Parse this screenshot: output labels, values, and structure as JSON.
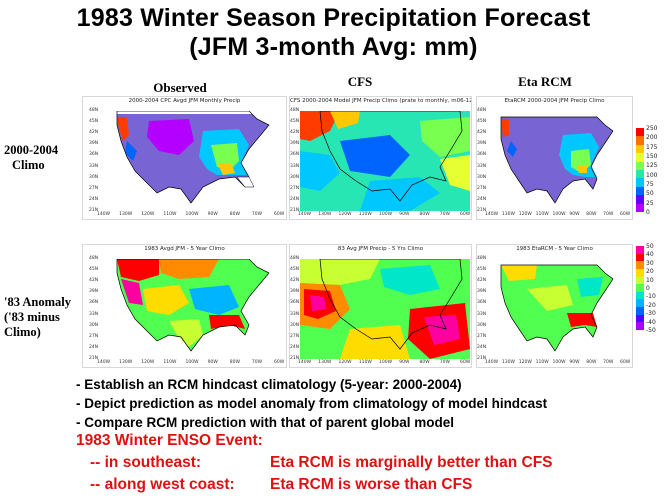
{
  "slide": {
    "title_line1": "1983 Winter Season Precipitation Forecast",
    "title_line2": "(JFM 3-month Avg: mm)"
  },
  "columns": [
    {
      "id": "observed",
      "label": "Observed"
    },
    {
      "id": "cfs",
      "label": "CFS"
    },
    {
      "id": "eta",
      "label": "Eta RCM"
    }
  ],
  "rows": [
    {
      "id": "climo",
      "label_line1": "2000-2004",
      "label_line2": "Climo"
    },
    {
      "id": "anomaly",
      "label_line1": "'83 Anomaly",
      "label_line2": "('83 minus",
      "label_line3": "Climo)"
    }
  ],
  "panels": {
    "obs_climo": {
      "title": "2000-2004 CPC Avgd JFM Monthly Precip"
    },
    "cfs_climo": {
      "title": "CFS 2000-2004 Model JFM Precip Climo (prate to monthly, m06-12)"
    },
    "eta_climo": {
      "title": "EtaRCM 2000-2004 JFM Precip Climo"
    },
    "obs_anom": {
      "title": "1983 Avgd JFM - 5 Year Climo"
    },
    "cfs_anom": {
      "title": "83 Avg JFM Precip - 5 Yrs Climo"
    },
    "eta_anom": {
      "title": "1983 EtaRCM - 5 Year Climo"
    }
  },
  "axes": {
    "lat_ticks": [
      "48N",
      "45N",
      "42N",
      "39N",
      "36N",
      "33N",
      "30N",
      "27N",
      "24N",
      "21N"
    ],
    "lon_ticks": [
      "140W",
      "130W",
      "120W",
      "110W",
      "100W",
      "90W",
      "80W",
      "70W",
      "60W"
    ]
  },
  "colorbars": {
    "climo": {
      "labels": [
        "250",
        "200",
        "175",
        "150",
        "125",
        "100",
        "75",
        "50",
        "25",
        "0"
      ],
      "colors": [
        "#ff0000",
        "#ff6e00",
        "#ffc800",
        "#e6ff32",
        "#78ff50",
        "#28e6b4",
        "#00c8ff",
        "#0064ff",
        "#6400ff",
        "#b400ff"
      ]
    },
    "anomaly": {
      "labels": [
        "50",
        "40",
        "30",
        "20",
        "10",
        "0",
        "-10",
        "-20",
        "-30",
        "-40",
        "-50"
      ],
      "colors": [
        "#ff00a0",
        "#ff0000",
        "#ff8c00",
        "#ffdc00",
        "#c8ff32",
        "#50ff50",
        "#00e6c8",
        "#00b4ff",
        "#0064ff",
        "#5a00ff",
        "#aa00ff"
      ]
    }
  },
  "bullets": [
    "- Establish an RCM hindcast climatology (5-year: 2000-2004)",
    "- Depict prediction as model anomaly from climatology of model hindcast",
    "- Compare RCM prediction with that of parent global model"
  ],
  "enso": {
    "heading": "1983 Winter ENSO Event:",
    "line1_region": "-- in southeast:",
    "line1_result": "Eta RCM is marginally better than CFS",
    "line2_region": "-- along west coast:",
    "line2_result": "Eta RCM is worse than CFS"
  },
  "colors": {
    "accent_red": "#e01010",
    "ocean": "#ffffff",
    "coast": "#000000"
  }
}
